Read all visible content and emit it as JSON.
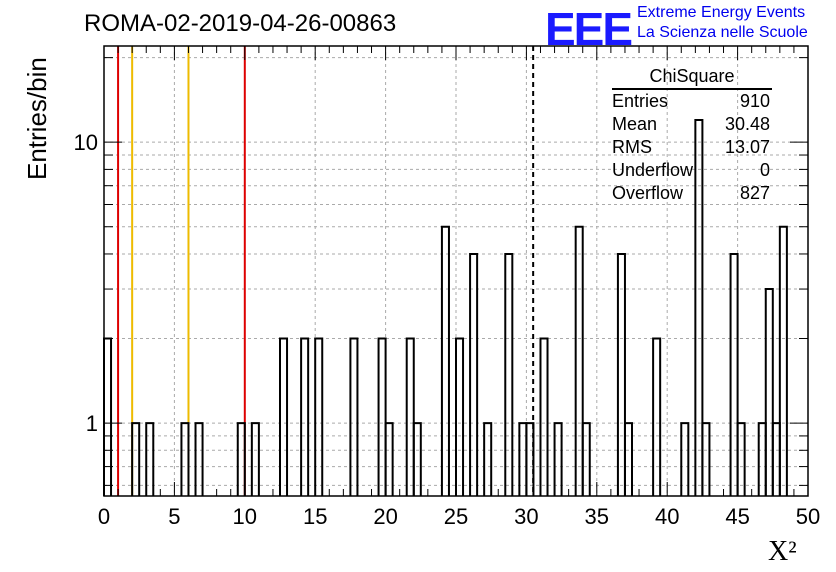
{
  "header": {
    "run_title": "ROMA-02-2019-04-26-00863",
    "logo_text": "EEE",
    "logo_line1": "Extreme Energy Events",
    "logo_line2": "La Scienza nelle Scuole",
    "logo_color": "#1a1aff"
  },
  "stats_box": {
    "title": "ChiSquare",
    "rows": [
      {
        "label": "Entries",
        "value": "910"
      },
      {
        "label": "Mean",
        "value": "30.48"
      },
      {
        "label": "RMS",
        "value": "13.07"
      },
      {
        "label": "Underflow",
        "value": "0"
      },
      {
        "label": "Overflow",
        "value": "827"
      }
    ]
  },
  "chart_data": {
    "type": "bar",
    "histogram": true,
    "xlabel": "X²",
    "ylabel": "Entries/bin",
    "xlim": [
      0,
      50
    ],
    "ylim": [
      0.55,
      22
    ],
    "y_scale": "log",
    "grid": true,
    "bin_width": 0.5,
    "x_ticks": [
      0,
      5,
      10,
      15,
      20,
      25,
      30,
      35,
      40,
      45,
      50
    ],
    "y_ticks": [
      1,
      10
    ],
    "bins": [
      {
        "x": 0.0,
        "y": 2
      },
      {
        "x": 2.0,
        "y": 1
      },
      {
        "x": 3.0,
        "y": 1
      },
      {
        "x": 5.5,
        "y": 1
      },
      {
        "x": 6.5,
        "y": 1
      },
      {
        "x": 9.5,
        "y": 1
      },
      {
        "x": 10.5,
        "y": 1
      },
      {
        "x": 12.5,
        "y": 2
      },
      {
        "x": 14.0,
        "y": 2
      },
      {
        "x": 15.0,
        "y": 2
      },
      {
        "x": 17.5,
        "y": 2
      },
      {
        "x": 19.5,
        "y": 2
      },
      {
        "x": 20.0,
        "y": 1
      },
      {
        "x": 21.5,
        "y": 2
      },
      {
        "x": 22.0,
        "y": 1
      },
      {
        "x": 24.0,
        "y": 5
      },
      {
        "x": 25.0,
        "y": 2
      },
      {
        "x": 26.0,
        "y": 4
      },
      {
        "x": 27.0,
        "y": 1
      },
      {
        "x": 28.5,
        "y": 4
      },
      {
        "x": 29.5,
        "y": 1
      },
      {
        "x": 30.0,
        "y": 1
      },
      {
        "x": 31.0,
        "y": 2
      },
      {
        "x": 32.0,
        "y": 1
      },
      {
        "x": 33.5,
        "y": 5
      },
      {
        "x": 34.0,
        "y": 1
      },
      {
        "x": 36.5,
        "y": 4
      },
      {
        "x": 37.0,
        "y": 1
      },
      {
        "x": 39.0,
        "y": 2
      },
      {
        "x": 41.0,
        "y": 1
      },
      {
        "x": 42.0,
        "y": 12
      },
      {
        "x": 42.5,
        "y": 1
      },
      {
        "x": 44.5,
        "y": 4
      },
      {
        "x": 45.0,
        "y": 1
      },
      {
        "x": 46.5,
        "y": 1
      },
      {
        "x": 47.0,
        "y": 3
      },
      {
        "x": 47.5,
        "y": 1
      },
      {
        "x": 48.0,
        "y": 5
      }
    ],
    "vertical_lines": [
      {
        "x": 1.0,
        "color": "#dd0000",
        "style": "solid"
      },
      {
        "x": 2.0,
        "color": "#eebb00",
        "style": "solid"
      },
      {
        "x": 6.0,
        "color": "#eebb00",
        "style": "solid"
      },
      {
        "x": 10.0,
        "color": "#dd0000",
        "style": "solid"
      },
      {
        "x": 30.48,
        "color": "#000000",
        "style": "dashed"
      }
    ]
  }
}
